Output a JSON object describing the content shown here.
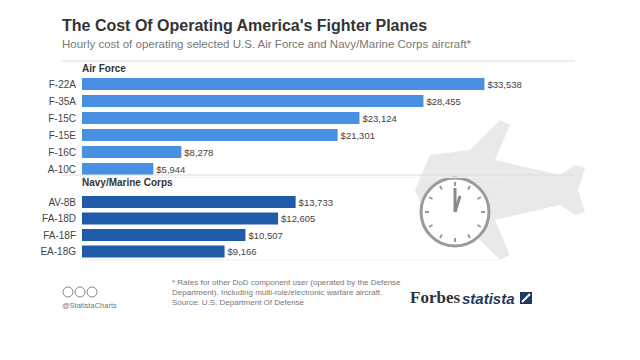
{
  "header": {
    "title": "The Cost Of Operating America's Fighter Planes",
    "subtitle": "Hourly cost of operating selected U.S. Air Force and Navy/Marine Corps aircraft*"
  },
  "chart_data": [
    {
      "type": "bar",
      "orientation": "horizontal",
      "title": "Air Force",
      "categories": [
        "F-22A",
        "F-35A",
        "F-15C",
        "F-15E",
        "F-16C",
        "A-10C"
      ],
      "values": [
        33538,
        28455,
        23124,
        21301,
        8278,
        5944
      ],
      "value_labels": [
        "$33,538",
        "$28,455",
        "$23,124",
        "$21,301",
        "$8,278",
        "$5,944"
      ],
      "color": "#4a90e2",
      "xlim": [
        0,
        35000
      ],
      "data_labels": true,
      "tick_labels": "y",
      "grid": false
    },
    {
      "type": "bar",
      "orientation": "horizontal",
      "title": "Navy/Marine Corps",
      "categories": [
        "AV-8B",
        "FA-18D",
        "FA-18F",
        "EA-18G"
      ],
      "values": [
        13733,
        12605,
        10507,
        9166
      ],
      "value_labels": [
        "$13,733",
        "$12,605",
        "$10,507",
        "$9,166"
      ],
      "color": "#1f5ba8",
      "xlim": [
        0,
        27000
      ],
      "data_labels": true,
      "tick_labels": "y",
      "grid": false
    }
  ],
  "footer": {
    "note": "* Rates for other DoD component user (operated by the Defense Department). Including multi-role/electronic warfare aircraft.",
    "source": "Source: U.S. Department Of Defense",
    "handle": "@StatistaCharts",
    "brands": [
      "Forbes",
      "statista"
    ]
  }
}
